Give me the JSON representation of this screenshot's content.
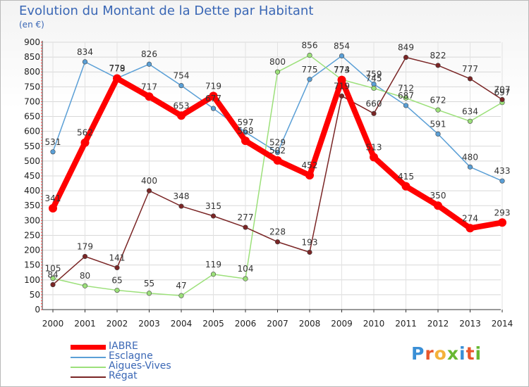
{
  "header": {
    "title": "Evolution du Montant de la Dette par Habitant",
    "subtitle": "(en €)"
  },
  "brand": {
    "logo_letters": [
      "P",
      "r",
      "o",
      "x",
      "i",
      "t",
      "i"
    ],
    "logo_colors": [
      "#3a8fd6",
      "#e9572b",
      "#f4b23b",
      "#67b832",
      "#3a8fd6",
      "#e9572b",
      "#67b832"
    ]
  },
  "chart_data": {
    "type": "line",
    "x": [
      "2000",
      "2001",
      "2002",
      "2003",
      "2004",
      "2005",
      "2006",
      "2007",
      "2008",
      "2009",
      "2010",
      "2011",
      "2012",
      "2013",
      "2014"
    ],
    "ylim": [
      0,
      900
    ],
    "yticks": [
      0,
      50,
      100,
      150,
      200,
      250,
      300,
      350,
      400,
      450,
      500,
      550,
      600,
      650,
      700,
      750,
      800,
      850,
      900
    ],
    "grid": true,
    "legend_position": "bottom-left",
    "series": [
      {
        "name": "IABRE",
        "color": "#ff0000",
        "values": [
          341,
          562,
          778,
          717,
          653,
          719,
          568,
          502,
          452,
          773,
          513,
          415,
          350,
          274,
          293
        ]
      },
      {
        "name": "Esclagne",
        "color": "#5a9fd6",
        "values": [
          531,
          834,
          779,
          826,
          754,
          677,
          597,
          529,
          775,
          854,
          759,
          687,
          591,
          480,
          433
        ]
      },
      {
        "name": "Aigues-Vives",
        "color": "#9ce07a",
        "values": [
          105,
          80,
          65,
          55,
          47,
          119,
          104,
          800,
          856,
          774,
          745,
          712,
          672,
          634,
          697
        ]
      },
      {
        "name": "Régat",
        "color": "#7a2525",
        "values": [
          84,
          179,
          141,
          400,
          348,
          315,
          277,
          228,
          193,
          719,
          660,
          849,
          822,
          777,
          707
        ]
      }
    ]
  }
}
